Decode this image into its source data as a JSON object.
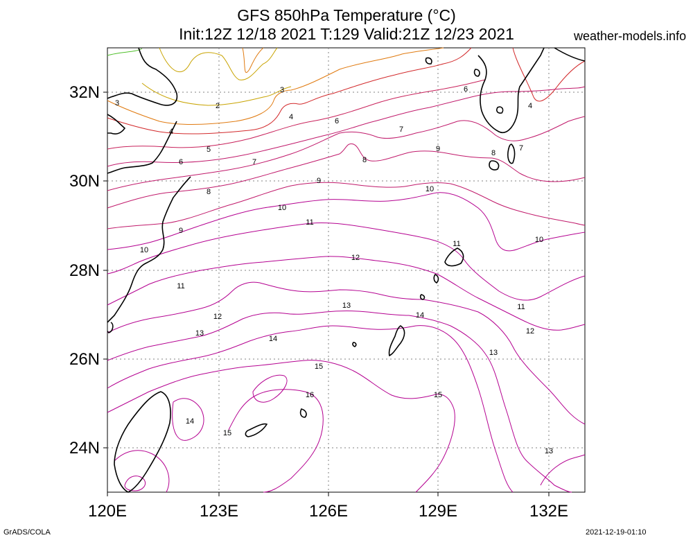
{
  "header": {
    "title_line1": "GFS 850hPa Temperature (°C)",
    "title_line2": "Init:12Z 12/18 2021 T:129 Valid:21Z 12/23 2021",
    "brand": "weather-models.info"
  },
  "footer": {
    "left": "GrADS/COLA",
    "right": "2021-12-19-01:10"
  },
  "axes": {
    "x_ticks": [
      "120E",
      "123E",
      "126E",
      "129E",
      "132E"
    ],
    "y_ticks": [
      "32N",
      "30N",
      "28N",
      "26N",
      "24N"
    ]
  },
  "contour_labels": [
    "2",
    "3",
    "3",
    "4",
    "4",
    "4",
    "5",
    "6",
    "6",
    "6",
    "7",
    "7",
    "7",
    "8",
    "8",
    "8",
    "9",
    "9",
    "9",
    "10",
    "10",
    "10",
    "10",
    "11",
    "11",
    "11",
    "11",
    "12",
    "12",
    "12",
    "13",
    "13",
    "13",
    "13",
    "14",
    "14",
    "14",
    "15",
    "15",
    "15",
    "16"
  ],
  "colors": {
    "t2": "#4fbf2a",
    "t3": "#c8a300",
    "t4": "#e07a10",
    "t6": "#d2282a",
    "t8": "#c0186a",
    "t11": "#b40090",
    "coast": "#000000",
    "grid": "#808080"
  }
}
